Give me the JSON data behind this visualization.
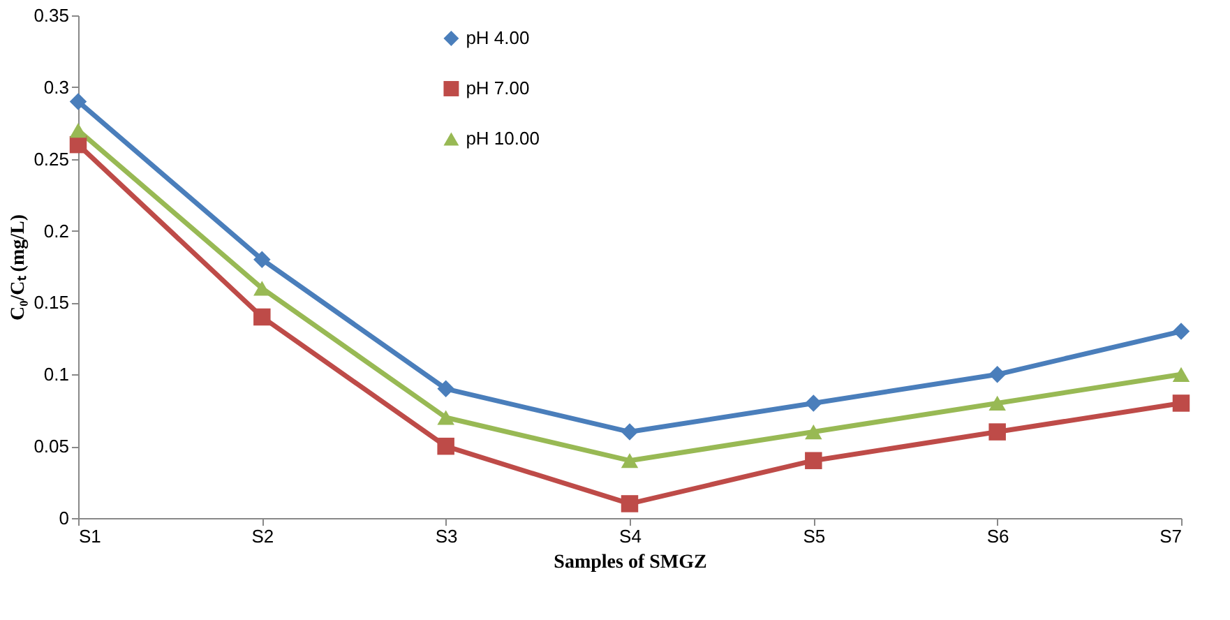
{
  "chart_data": {
    "type": "line",
    "xlabel": "Samples of SMGZ",
    "ylabel": "C₀/Cₜ (mg/L)",
    "categories": [
      "S1",
      "S2",
      "S3",
      "S4",
      "S5",
      "S6",
      "S7"
    ],
    "series": [
      {
        "name": "pH 4.00",
        "color": "#4a7ebb",
        "marker": "diamond",
        "values": [
          0.29,
          0.18,
          0.09,
          0.06,
          0.08,
          0.1,
          0.13
        ]
      },
      {
        "name": "pH 7.00",
        "color": "#be4b48",
        "marker": "square",
        "values": [
          0.26,
          0.14,
          0.05,
          0.01,
          0.04,
          0.06,
          0.08
        ]
      },
      {
        "name": "pH 10.00",
        "color": "#98b954",
        "marker": "triangle",
        "values": [
          0.27,
          0.16,
          0.07,
          0.04,
          0.06,
          0.08,
          0.1
        ]
      }
    ],
    "ylim": [
      0,
      0.35
    ],
    "yticks": [
      0,
      0.05,
      0.1,
      0.15,
      0.2,
      0.25,
      0.3,
      0.35
    ],
    "grid": false,
    "legend": "top",
    "line_style": "solid"
  }
}
